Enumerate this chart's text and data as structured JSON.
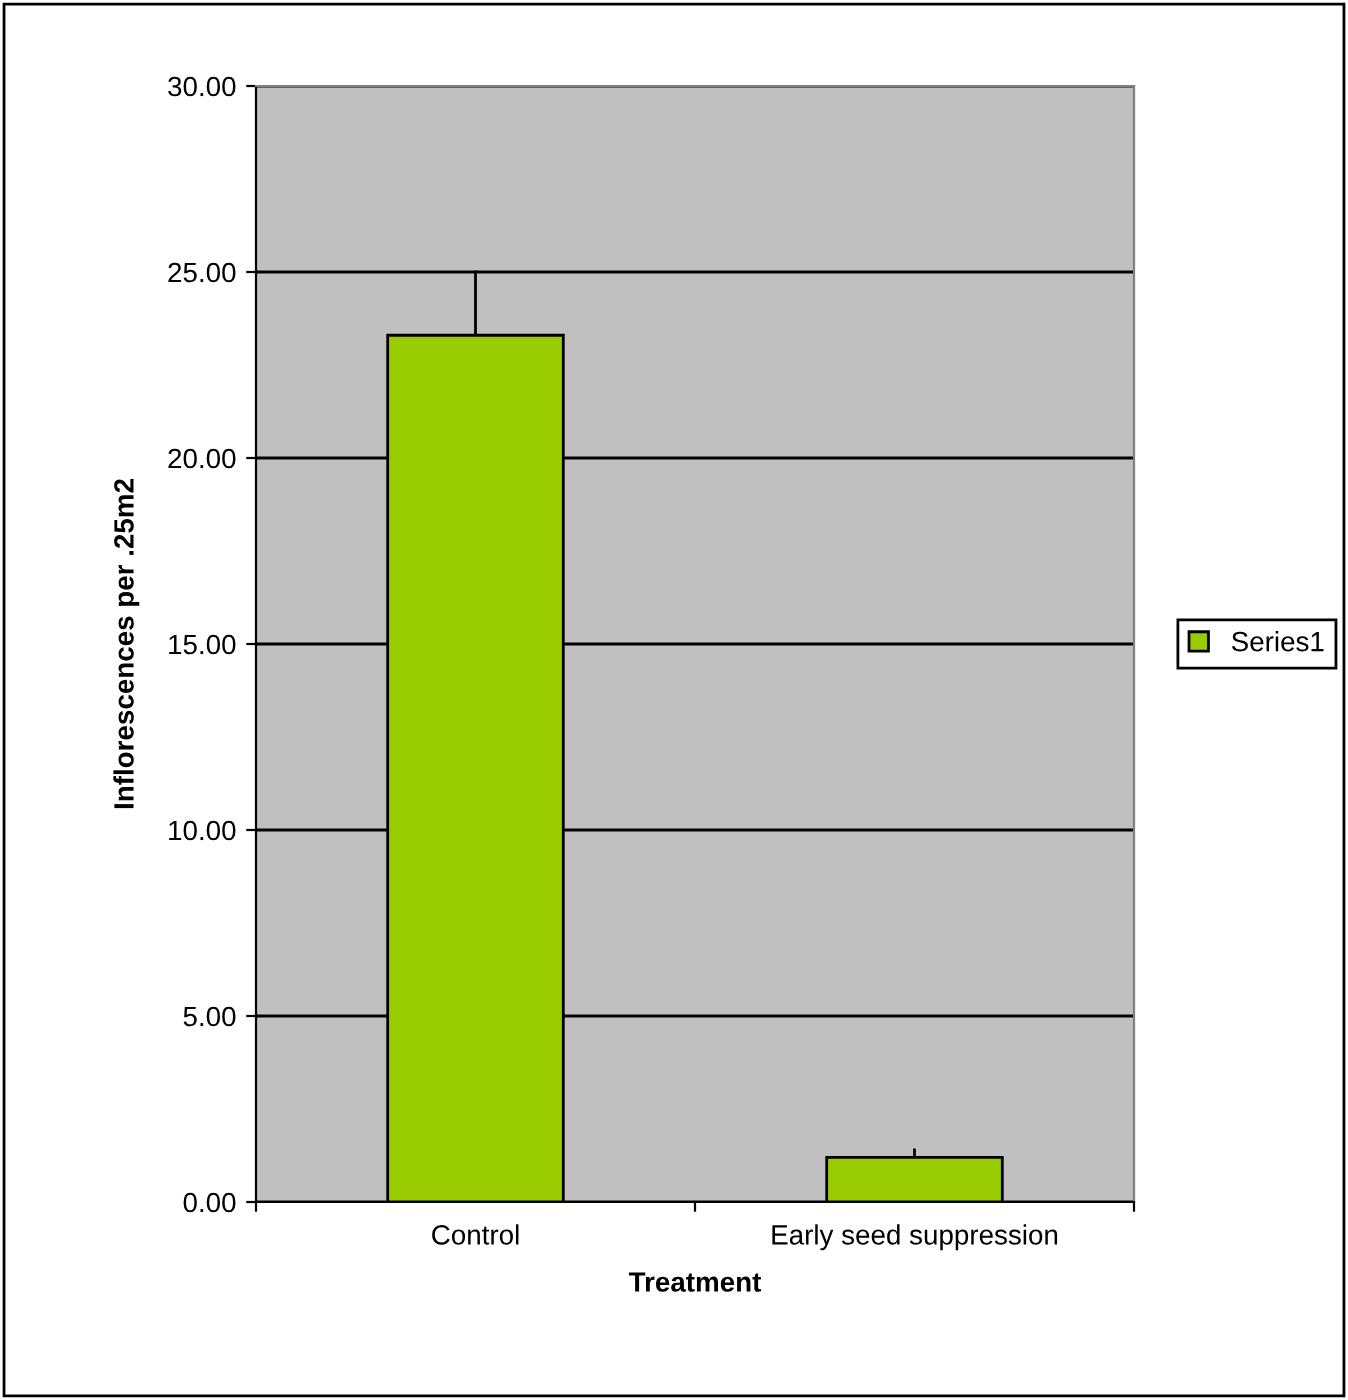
{
  "chart_data": {
    "type": "bar",
    "xlabel": "Treatment",
    "ylabel": "Inflorescences per .25m2",
    "categories": [
      "Control",
      "Early seed suppression"
    ],
    "series": [
      {
        "name": "Series1",
        "color": "#99cc00",
        "values": [
          23.3,
          1.2
        ],
        "errors": [
          [
            23.3,
            25.0
          ],
          [
            1.2,
            1.4
          ]
        ]
      }
    ],
    "ylim": [
      0,
      30
    ],
    "yticks": [
      {
        "value": 0,
        "label": "0.00"
      },
      {
        "value": 5,
        "label": "5.00"
      },
      {
        "value": 10,
        "label": "10.00"
      },
      {
        "value": 15,
        "label": "15.00"
      },
      {
        "value": 20,
        "label": "20.00"
      },
      {
        "value": 25,
        "label": "25.00"
      },
      {
        "value": 30,
        "label": "30.00"
      }
    ],
    "grid": "y",
    "legend": "right"
  }
}
